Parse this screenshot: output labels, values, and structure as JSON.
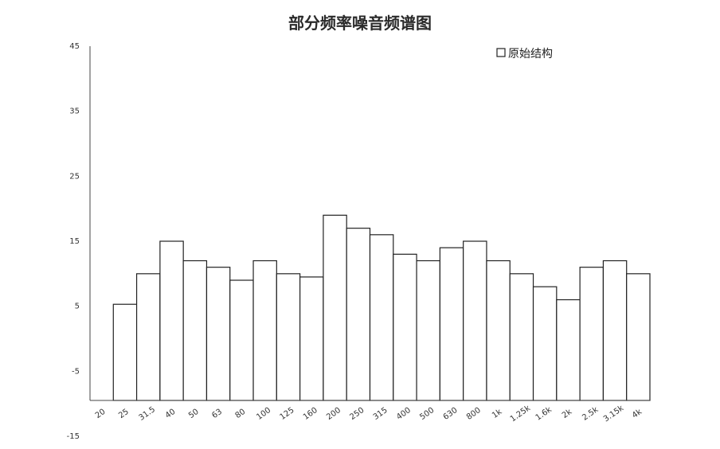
{
  "chart_data": {
    "type": "bar",
    "title": "部分频率噪音频谱图",
    "xlabel": "",
    "ylabel": "",
    "ylim": [
      -15,
      45
    ],
    "yticks": [
      45,
      35,
      25,
      15,
      5,
      -5,
      -15
    ],
    "categories": [
      "20",
      "25",
      "31.5",
      "40",
      "50",
      "63",
      "80",
      "100",
      "125",
      "160",
      "200",
      "250",
      "315",
      "400",
      "500",
      "630",
      "800",
      "1k",
      "1.25k",
      "1.6k",
      "2k",
      "2.5k",
      "3.15k",
      "4k"
    ],
    "series": [
      {
        "name": "原始结构",
        "values": [
          -9.5,
          5.3,
          10,
          15,
          12,
          11,
          9,
          12,
          10,
          9.5,
          19,
          17,
          16,
          13,
          12,
          14,
          15,
          12,
          10,
          8,
          6,
          11,
          12,
          10
        ]
      }
    ],
    "legend_position": "top-right",
    "grid": false,
    "colors": {
      "bar_fill": "#ffffff",
      "bar_stroke": "#222222",
      "axis": "#444444"
    }
  }
}
